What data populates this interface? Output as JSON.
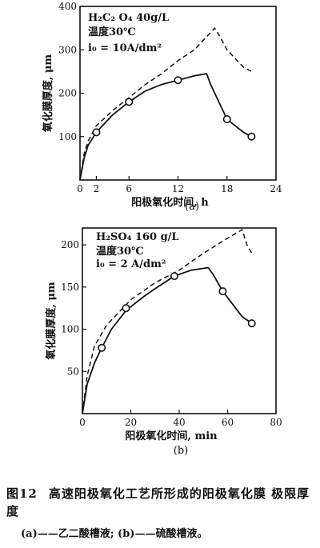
{
  "chart_data": [
    {
      "type": "line",
      "panel_label": "(a)",
      "annotations": [
        "H₂C₂ O₄ 40g/L",
        "温度30℃",
        "i₀ = 10A/dm²"
      ],
      "xlabel": "阳极氧化时间, h",
      "ylabel": "氧化膜厚度, μm",
      "xlim": [
        0,
        24
      ],
      "ylim": [
        0,
        400
      ],
      "xticks": [
        "0",
        "2",
        "6",
        "12",
        "18",
        "24"
      ],
      "yticks": [
        "100",
        "200",
        "300",
        "400"
      ],
      "xtick_values": [
        0,
        2,
        6,
        12,
        18,
        24
      ],
      "ytick_values": [
        100,
        200,
        300,
        400
      ],
      "grid": false,
      "series": [
        {
          "style": "dashed",
          "x": [
            0,
            0.5,
            1,
            2,
            4,
            6,
            8,
            10,
            12,
            14,
            16.5,
            17,
            18,
            20,
            21
          ],
          "y": [
            0,
            60,
            90,
            125,
            160,
            190,
            220,
            245,
            275,
            300,
            350,
            335,
            300,
            260,
            250
          ]
        },
        {
          "style": "solid",
          "x": [
            0,
            0.5,
            1,
            2,
            4,
            6,
            8,
            10,
            12,
            14,
            15.5,
            16,
            17,
            18,
            20,
            21
          ],
          "y": [
            0,
            50,
            80,
            110,
            150,
            180,
            205,
            220,
            230,
            240,
            245,
            220,
            180,
            140,
            110,
            100
          ]
        },
        {
          "style": "markers",
          "x": [
            2,
            6,
            12,
            18,
            21
          ],
          "y": [
            110,
            180,
            230,
            140,
            100
          ]
        }
      ]
    },
    {
      "type": "line",
      "panel_label": "(b)",
      "annotations": [
        "H₂SO₄     160 g/L",
        "温度30℃",
        "i₀ = 2 A/dm²"
      ],
      "xlabel": "阳极氧化时间, min",
      "ylabel": "氧化膜厚度, μm",
      "xlim": [
        0,
        80
      ],
      "ylim": [
        0,
        220
      ],
      "xticks": [
        "0",
        "20",
        "40",
        "60",
        "80"
      ],
      "yticks": [
        "50",
        "100",
        "150",
        "200"
      ],
      "xtick_values": [
        0,
        20,
        40,
        60,
        80
      ],
      "ytick_values": [
        50,
        100,
        150,
        200
      ],
      "grid": false,
      "series": [
        {
          "style": "dashed",
          "x": [
            0,
            2,
            5,
            10,
            15,
            20,
            30,
            40,
            50,
            60,
            66,
            68,
            70
          ],
          "y": [
            0,
            45,
            80,
            105,
            120,
            135,
            155,
            170,
            190,
            208,
            218,
            200,
            190
          ]
        },
        {
          "style": "solid",
          "x": [
            0,
            2,
            5,
            8,
            12,
            18,
            25,
            30,
            38,
            45,
            52,
            54,
            58,
            62,
            66,
            70
          ],
          "y": [
            0,
            35,
            60,
            78,
            100,
            122,
            138,
            148,
            163,
            170,
            173,
            165,
            145,
            130,
            115,
            107
          ]
        },
        {
          "style": "markers",
          "x": [
            8,
            18,
            38,
            58,
            70
          ],
          "y": [
            78,
            125,
            163,
            145,
            107
          ]
        }
      ]
    }
  ],
  "caption": {
    "figure_no": "图12",
    "title": "高速阳极氧化工艺所形成的阳极氧化膜 极限厚度",
    "subtitle": "(a)——乙二酸槽液;  (b)——硫酸槽液。"
  }
}
